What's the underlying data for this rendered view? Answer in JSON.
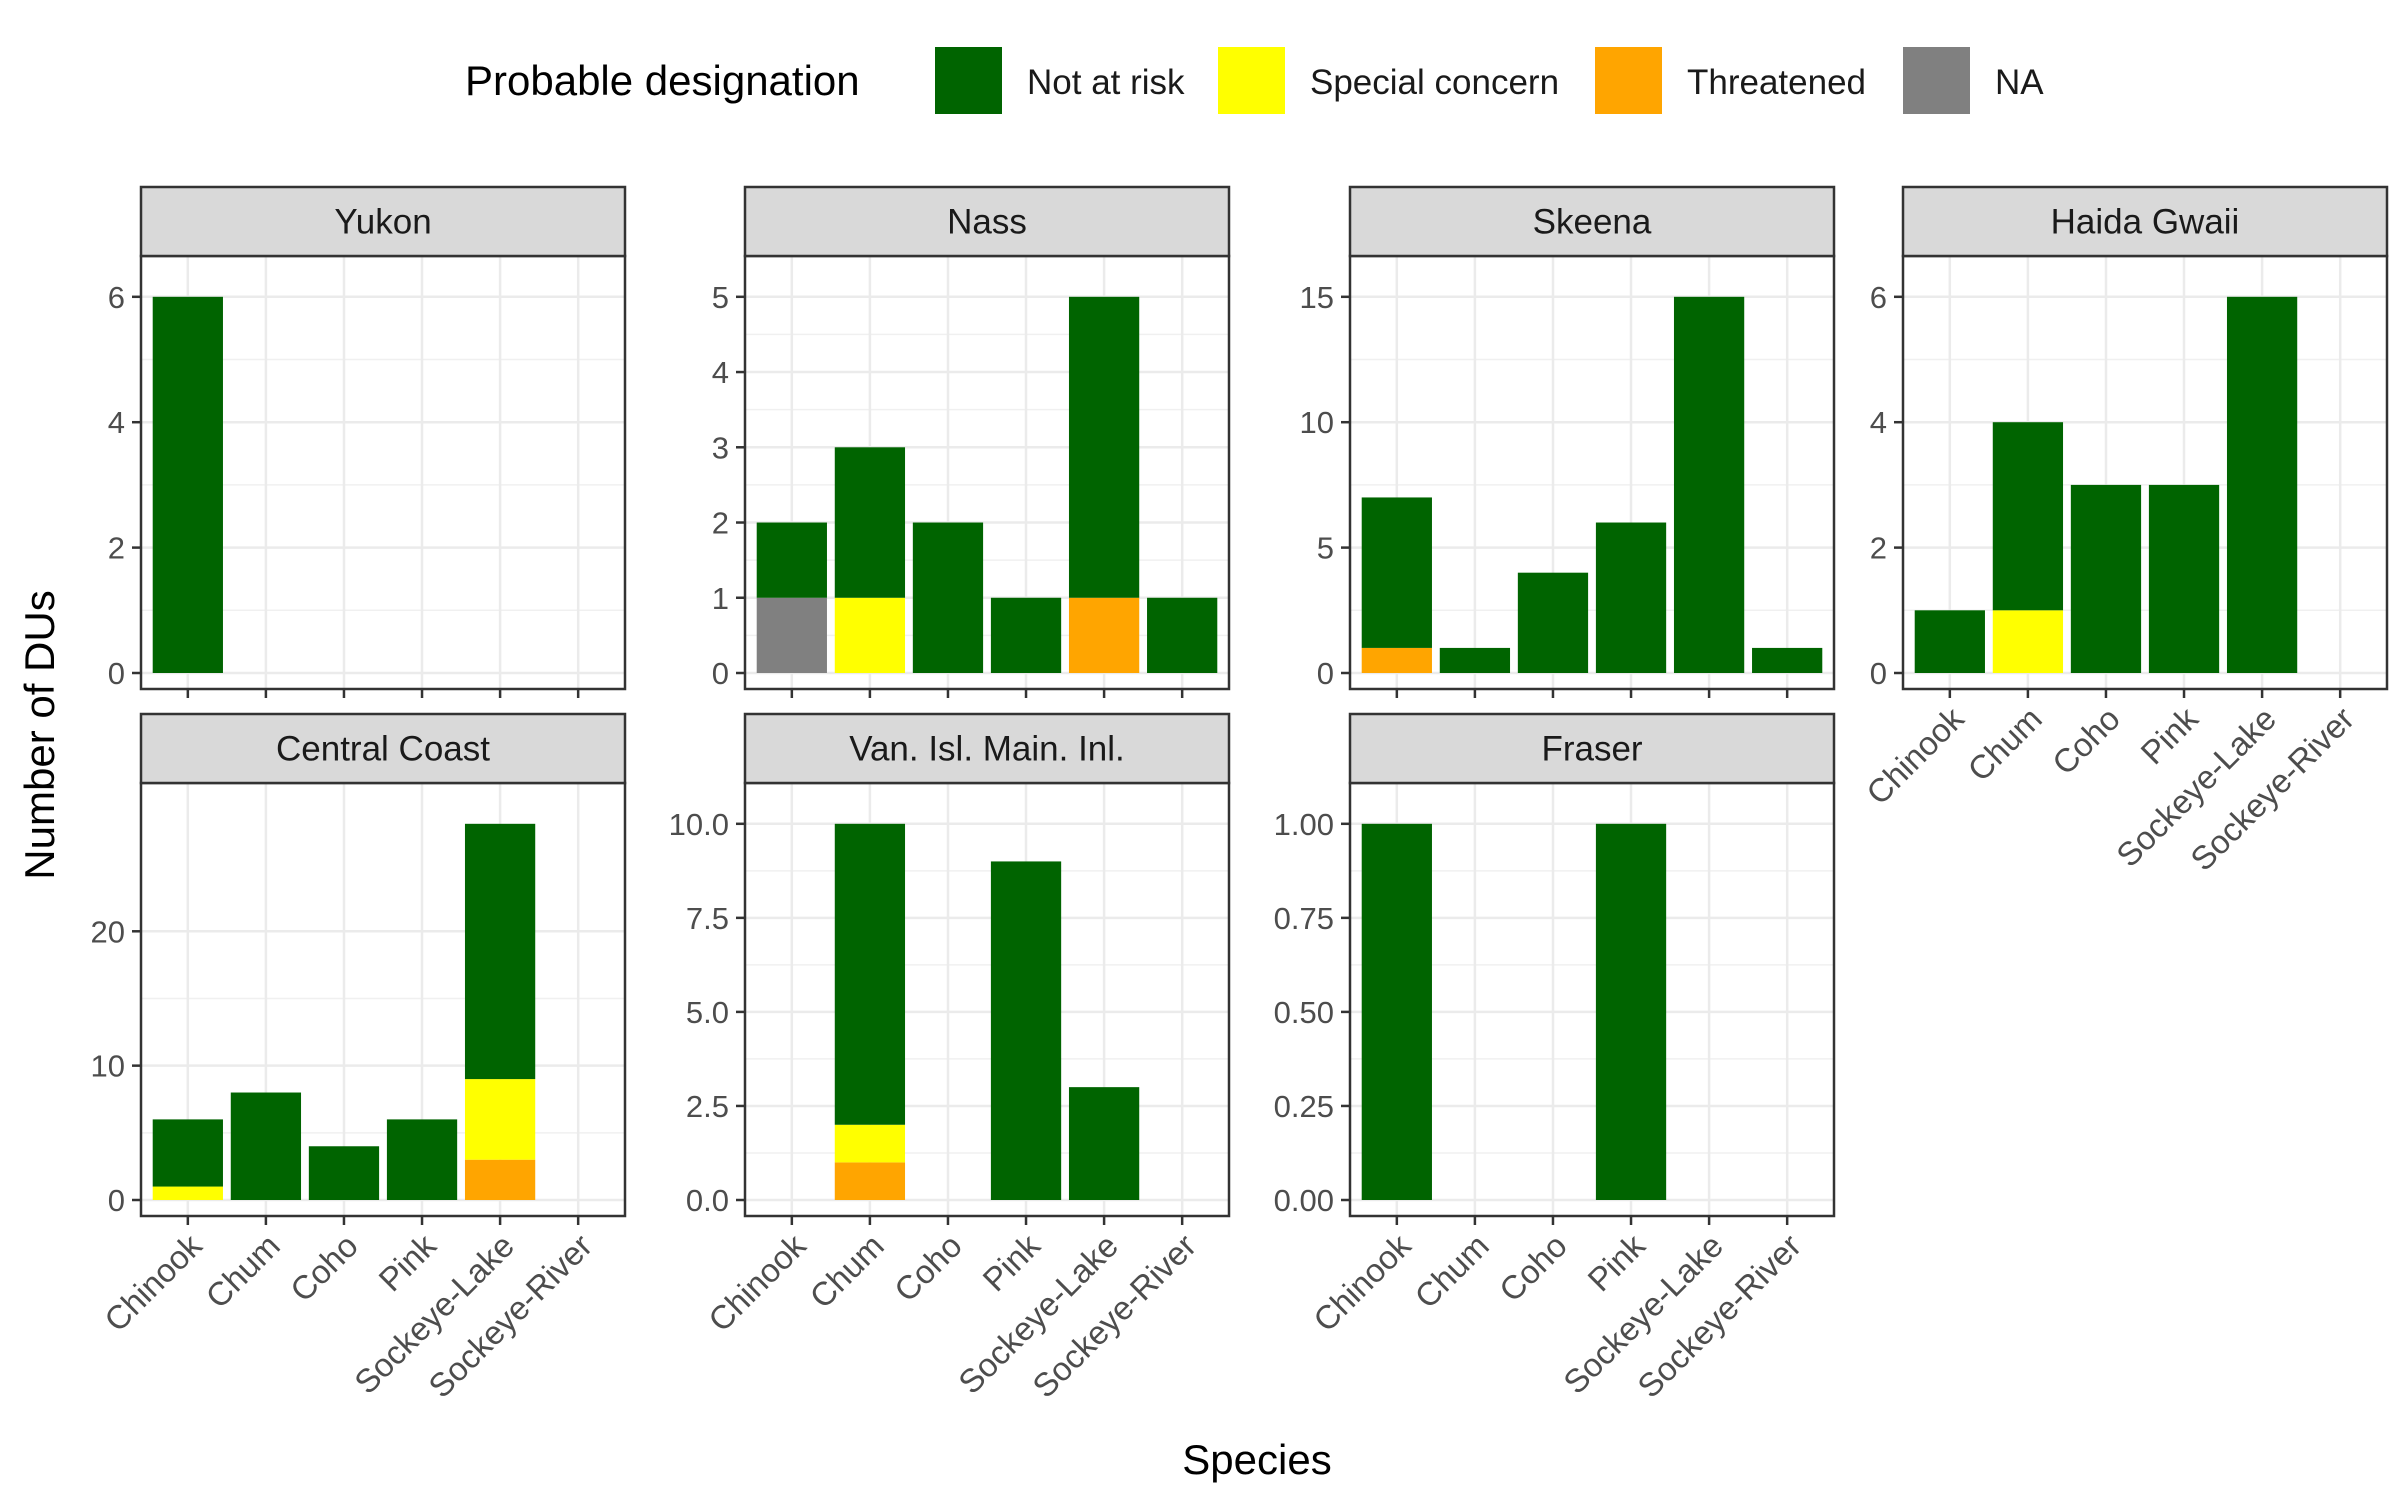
{
  "legend": {
    "title": "Probable designation",
    "position": "top",
    "items": [
      {
        "key": "not_at_risk",
        "label": "Not at risk",
        "color": "#006400"
      },
      {
        "key": "special_concern",
        "label": "Special concern",
        "color": "#FFFF00"
      },
      {
        "key": "threatened",
        "label": "Threatened",
        "color": "#FFA500"
      },
      {
        "key": "na",
        "label": "NA",
        "color": "#808080"
      }
    ]
  },
  "axes": {
    "xlabel": "Species",
    "ylabel": "Number of DUs"
  },
  "chart_data": {
    "type": "bar",
    "stacked": true,
    "faceted": true,
    "legend_position": "top",
    "grid": true,
    "categories": [
      "Chinook",
      "Chum",
      "Coho",
      "Pink",
      "Sockeye-Lake",
      "Sockeye-River"
    ],
    "stack_order": [
      "na",
      "threatened",
      "special_concern",
      "not_at_risk"
    ],
    "panels": [
      {
        "title": "Yukon",
        "ylim": [
          0,
          6.3
        ],
        "yticks": [
          "0",
          "2",
          "4",
          "6"
        ],
        "ytick_values": [
          0,
          2,
          4,
          6
        ],
        "series": [
          {
            "key": "not_at_risk",
            "values": [
              6,
              0,
              0,
              0,
              0,
              0
            ]
          },
          {
            "key": "special_concern",
            "values": [
              0,
              0,
              0,
              0,
              0,
              0
            ]
          },
          {
            "key": "threatened",
            "values": [
              0,
              0,
              0,
              0,
              0,
              0
            ]
          },
          {
            "key": "na",
            "values": [
              0,
              0,
              0,
              0,
              0,
              0
            ]
          }
        ]
      },
      {
        "title": "Nass",
        "ylim": [
          0,
          5.25
        ],
        "yticks": [
          "0",
          "1",
          "2",
          "3",
          "4",
          "5"
        ],
        "ytick_values": [
          0,
          1,
          2,
          3,
          4,
          5
        ],
        "series": [
          {
            "key": "not_at_risk",
            "values": [
              1,
              2,
              2,
              1,
              4,
              1
            ]
          },
          {
            "key": "special_concern",
            "values": [
              0,
              1,
              0,
              0,
              0,
              0
            ]
          },
          {
            "key": "threatened",
            "values": [
              0,
              0,
              0,
              0,
              1,
              0
            ]
          },
          {
            "key": "na",
            "values": [
              1,
              0,
              0,
              0,
              0,
              0
            ]
          }
        ]
      },
      {
        "title": "Skeena",
        "ylim": [
          0,
          15.75
        ],
        "yticks": [
          "0",
          "5",
          "10",
          "15"
        ],
        "ytick_values": [
          0,
          5,
          10,
          15
        ],
        "series": [
          {
            "key": "not_at_risk",
            "values": [
              6,
              1,
              4,
              6,
              15,
              1
            ]
          },
          {
            "key": "special_concern",
            "values": [
              0,
              0,
              0,
              0,
              0,
              0
            ]
          },
          {
            "key": "threatened",
            "values": [
              1,
              0,
              0,
              0,
              0,
              0
            ]
          },
          {
            "key": "na",
            "values": [
              0,
              0,
              0,
              0,
              0,
              0
            ]
          }
        ]
      },
      {
        "title": "Haida Gwaii",
        "ylim": [
          0,
          6.3
        ],
        "yticks": [
          "0",
          "2",
          "4",
          "6"
        ],
        "ytick_values": [
          0,
          2,
          4,
          6
        ],
        "series": [
          {
            "key": "not_at_risk",
            "values": [
              1,
              3,
              3,
              3,
              6,
              0
            ]
          },
          {
            "key": "special_concern",
            "values": [
              0,
              1,
              0,
              0,
              0,
              0
            ]
          },
          {
            "key": "threatened",
            "values": [
              0,
              0,
              0,
              0,
              0,
              0
            ]
          },
          {
            "key": "na",
            "values": [
              0,
              0,
              0,
              0,
              0,
              0
            ]
          }
        ]
      },
      {
        "title": "Central Coast",
        "ylim": [
          0,
          29.4
        ],
        "yticks": [
          "0",
          "10",
          "20"
        ],
        "ytick_values": [
          0,
          10,
          20
        ],
        "series": [
          {
            "key": "not_at_risk",
            "values": [
              5,
              8,
              4,
              6,
              19,
              0
            ]
          },
          {
            "key": "special_concern",
            "values": [
              1,
              0,
              0,
              0,
              6,
              0
            ]
          },
          {
            "key": "threatened",
            "values": [
              0,
              0,
              0,
              0,
              3,
              0
            ]
          },
          {
            "key": "na",
            "values": [
              0,
              0,
              0,
              0,
              0,
              0
            ]
          }
        ]
      },
      {
        "title": "Van. Isl. Main. Inl.",
        "ylim": [
          0,
          10.5
        ],
        "yticks": [
          "0.0",
          "2.5",
          "5.0",
          "7.5",
          "10.0"
        ],
        "ytick_values": [
          0,
          2.5,
          5,
          7.5,
          10
        ],
        "series": [
          {
            "key": "not_at_risk",
            "values": [
              0,
              8,
              0,
              9,
              3,
              0
            ]
          },
          {
            "key": "special_concern",
            "values": [
              0,
              1,
              0,
              0,
              0,
              0
            ]
          },
          {
            "key": "threatened",
            "values": [
              0,
              1,
              0,
              0,
              0,
              0
            ]
          },
          {
            "key": "na",
            "values": [
              0,
              0,
              0,
              0,
              0,
              0
            ]
          }
        ]
      },
      {
        "title": "Fraser",
        "ylim": [
          0,
          1.05
        ],
        "yticks": [
          "0.00",
          "0.25",
          "0.50",
          "0.75",
          "1.00"
        ],
        "ytick_values": [
          0,
          0.25,
          0.5,
          0.75,
          1
        ],
        "series": [
          {
            "key": "not_at_risk",
            "values": [
              1,
              0,
              0,
              1,
              0,
              0
            ]
          },
          {
            "key": "special_concern",
            "values": [
              0,
              0,
              0,
              0,
              0,
              0
            ]
          },
          {
            "key": "threatened",
            "values": [
              0,
              0,
              0,
              0,
              0,
              0
            ]
          },
          {
            "key": "na",
            "values": [
              0,
              0,
              0,
              0,
              0,
              0
            ]
          }
        ]
      }
    ]
  }
}
